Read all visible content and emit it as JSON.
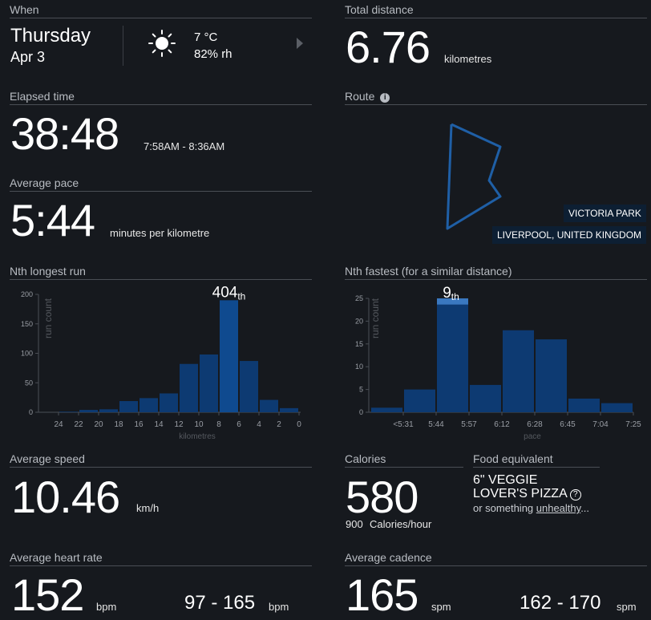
{
  "when": {
    "label": "When",
    "day": "Thursday",
    "date": "Apr 3",
    "weather_icon": "sun-icon",
    "temperature": "7 °C",
    "humidity": "82% rh",
    "next_icon": "chevron-right-icon"
  },
  "total_distance": {
    "label": "Total distance",
    "value": "6.76",
    "unit": "kilometres"
  },
  "elapsed_time": {
    "label": "Elapsed time",
    "value": "38:48",
    "range": "7:58AM - 8:36AM"
  },
  "route": {
    "label": "Route",
    "info_icon": "info-icon",
    "park": "VICTORIA PARK",
    "location": "LIVERPOOL, UNITED KINGDOM",
    "line_color": "#1f5fa6"
  },
  "average_pace": {
    "label": "Average pace",
    "value": "5:44",
    "unit": "minutes per kilometre"
  },
  "nth_longest": {
    "label": "Nth longest run",
    "rank_number": "404",
    "rank_suffix": "th"
  },
  "nth_fastest": {
    "label": "Nth fastest (for a similar distance)",
    "rank_number": "9",
    "rank_suffix": "th"
  },
  "chart_data": [
    {
      "type": "bar",
      "ylabel": "run count",
      "xlabel": "kilometres",
      "ylim": [
        0,
        200
      ],
      "yticks": [
        "0",
        "50",
        "100",
        "150",
        "200"
      ],
      "xticks": [
        "24",
        "22",
        "20",
        "18",
        "16",
        "14",
        "12",
        "10",
        "8",
        "6",
        "4",
        "2",
        "0"
      ],
      "bins": [
        [
          24,
          22
        ],
        [
          22,
          20
        ],
        [
          20,
          18
        ],
        [
          18,
          16
        ],
        [
          16,
          14
        ],
        [
          14,
          12
        ],
        [
          12,
          10
        ],
        [
          10,
          8
        ],
        [
          8,
          6
        ],
        [
          6,
          4
        ],
        [
          4,
          2
        ],
        [
          2,
          0
        ]
      ],
      "values": [
        1,
        4,
        5,
        19,
        24,
        32,
        82,
        98,
        190,
        87,
        21,
        7
      ],
      "highlight_index": 8,
      "bar_color": "#0d3a72",
      "highlight_color": "#0f4a8f"
    },
    {
      "type": "bar",
      "ylabel": "run count",
      "xlabel": "pace",
      "ylim": [
        0,
        25
      ],
      "yticks": [
        "0",
        "5",
        "10",
        "15",
        "20",
        "25"
      ],
      "xticks": [
        "<5:31",
        "5:44",
        "5:57",
        "6:12",
        "6:28",
        "6:45",
        "7:04",
        "7:25"
      ],
      "values": [
        1,
        5,
        24,
        6,
        18,
        16,
        3,
        2
      ],
      "highlight_index": 2,
      "highlight_cap": 1,
      "bar_color": "#0d3a72",
      "highlight_color": "#3a78c0"
    }
  ],
  "average_speed": {
    "label": "Average speed",
    "value": "10.46",
    "unit": "km/h"
  },
  "calories": {
    "label": "Calories",
    "value": "580",
    "rate_value": "900",
    "rate_unit": "Calories/hour"
  },
  "food": {
    "label": "Food equivalent",
    "name_line1": "6\" VEGGIE",
    "name_line2": "LOVER'S PIZZA",
    "help_icon": "question-circle-icon",
    "suffix_pre": "or something ",
    "suffix_link": "unhealthy",
    "suffix_post": "..."
  },
  "heart_rate": {
    "label": "Average heart rate",
    "value": "152",
    "unit": "bpm",
    "range": "97 - 165",
    "range_unit": "bpm"
  },
  "cadence": {
    "label": "Average cadence",
    "value": "165",
    "unit": "spm",
    "range": "162 - 170",
    "range_unit": "spm"
  }
}
